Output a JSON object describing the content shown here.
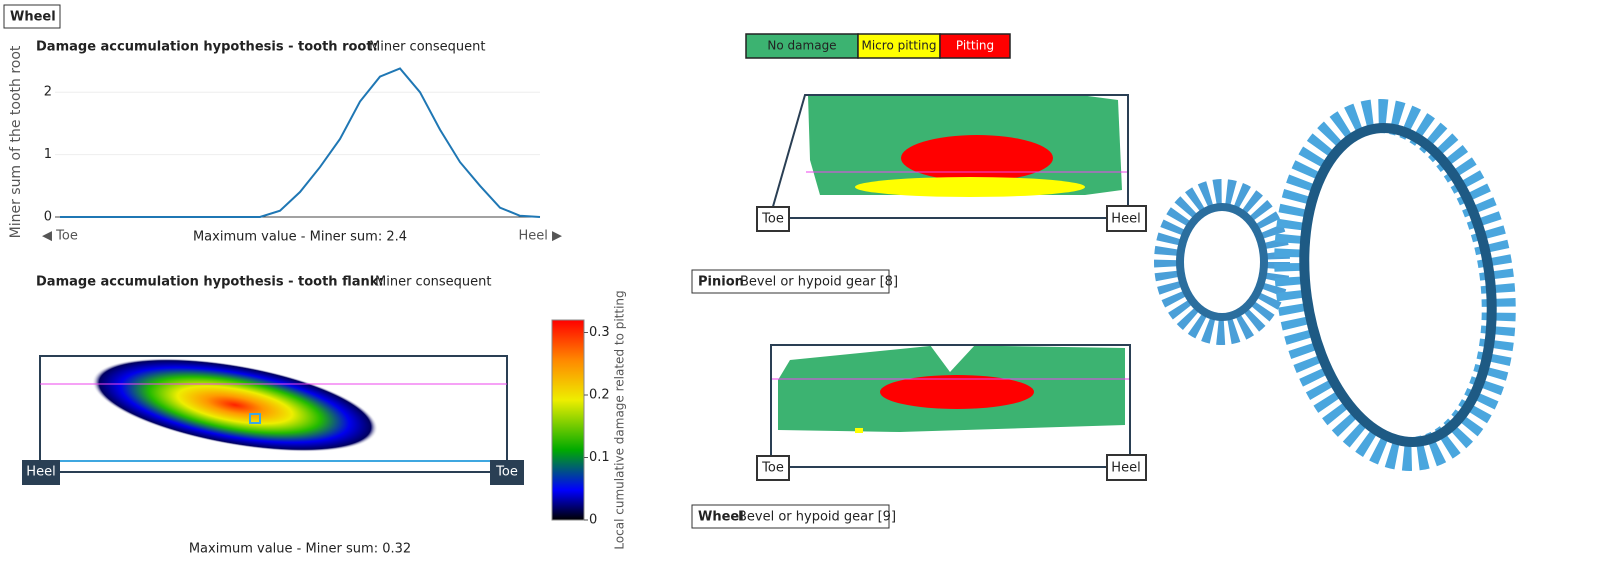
{
  "header": {
    "title": "Wheel"
  },
  "chart_data": {
    "type": "line",
    "title": "Damage accumulation hypothesis - tooth root:",
    "subtitle": "Miner consequent",
    "y_label": "Miner sum of the tooth root",
    "x_start_label": "◀ Toe",
    "x_end_label": "Heel ▶",
    "annotation": "Maximum value - Miner sum: 2.4",
    "color": "#1f77b4",
    "values": [
      0,
      0,
      0,
      0,
      0,
      0,
      0,
      0,
      0,
      0,
      0,
      0.1,
      0.4,
      0.8,
      1.25,
      1.85,
      2.25,
      2.38,
      2.0,
      1.4,
      0.88,
      0.5,
      0.15,
      0.02,
      0
    ],
    "ylim": [
      0,
      2.5
    ],
    "yticks": [
      0,
      1,
      2
    ],
    "grid": true
  },
  "flank": {
    "title": "Damage accumulation hypothesis - tooth flank:",
    "subtitle": "Miner consequent",
    "heel": "Heel",
    "toe": "Toe",
    "annotation": "Maximum value - Miner sum: 0.32",
    "colorbar": {
      "label": "Local cumulative damage related to pitting",
      "clim": [
        0,
        0.32
      ],
      "ticks": [
        0,
        0.1,
        0.2,
        0.3
      ]
    }
  },
  "legend": {
    "items": [
      {
        "name": "No damage",
        "color": "#3cb371"
      },
      {
        "name": "Micro pitting",
        "color": "#ffff00"
      },
      {
        "name": "Pitting",
        "color": "#ff0000"
      }
    ]
  },
  "pinion": {
    "toe": "Toe",
    "heel": "Heel",
    "caption_bold": "Pinion",
    "caption": "Bevel or hypoid gear [8]"
  },
  "wheel": {
    "toe": "Toe",
    "heel": "Heel",
    "caption_bold": "Wheel",
    "caption": "Bevel or hypoid gear [9]"
  }
}
